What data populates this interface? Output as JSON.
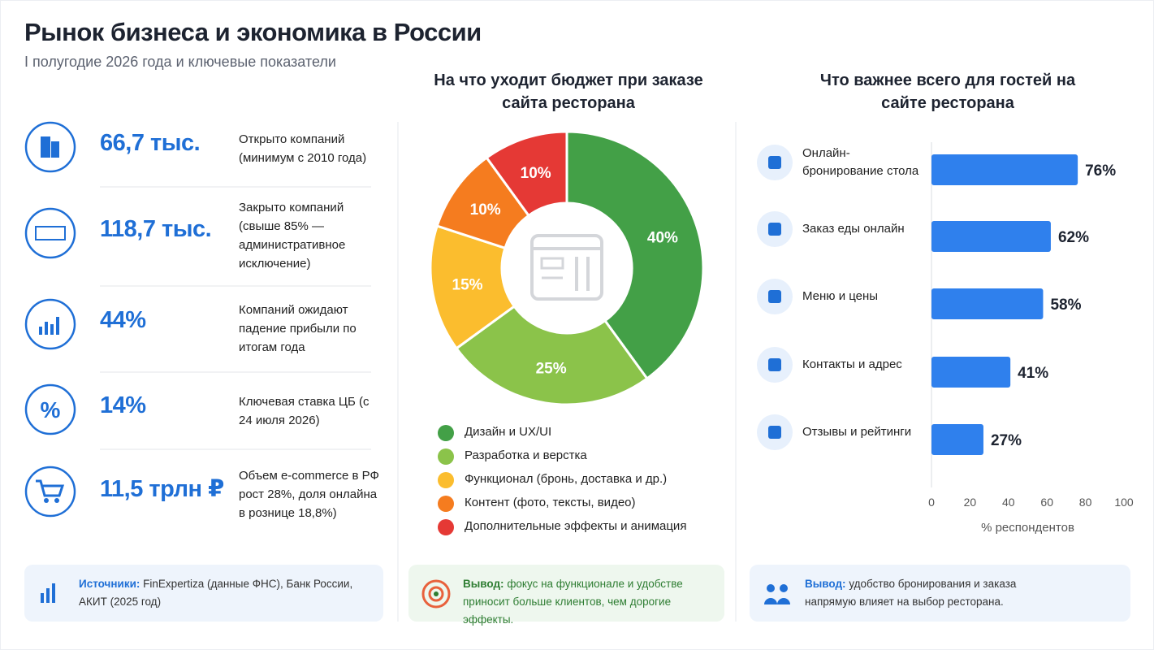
{
  "header": {
    "title": "Рынок бизнеса и экономика в России",
    "subtitle": "I полугодие 2026 года и ключевые показатели"
  },
  "kpis": [
    {
      "value": "66,7 тыс.",
      "text": "Открыто компаний (минимум с 2010 года)"
    },
    {
      "value": "118,7 тыс.",
      "text": "Закрыто компаний (свыше 85% — административное исключение)"
    },
    {
      "value": "44%",
      "text": "Компаний ожидают падение прибыли по итогам года"
    },
    {
      "value": "14%",
      "text": "Ключевая ставка ЦБ (с 24 июля 2026)"
    },
    {
      "value": "11,5 трлн ₽",
      "text": "Объем e-commerce в РФ рост 28%, доля онлайна в рознице 18,8%)"
    }
  ],
  "chart_data": [
    {
      "type": "donut",
      "title": "На что уходит бюджет при заказе сайта ресторана",
      "categories": [
        "Дизайн и UX/UI",
        "Разработка и верстка",
        "Функционал (бронь, доставка и др.)",
        "Контент (фото, тексты, видео)",
        "Дополнительные эффекты и анимация"
      ],
      "values": [
        40,
        25,
        15,
        10,
        10
      ],
      "value_labels": [
        "40%",
        "25%",
        "15%",
        "10%",
        "10%"
      ],
      "colors": [
        "#43a047",
        "#8bc34a",
        "#fbbd2e",
        "#f57c1f",
        "#e53935"
      ]
    },
    {
      "type": "bar",
      "orientation": "horizontal",
      "title": "Что важнее всего для гостей на сайте ресторана",
      "categories": [
        "Онлайн-бронирование стола",
        "Заказ еды онлайн",
        "Меню и цены",
        "Контакты и адрес",
        "Отзывы и рейтинги"
      ],
      "values": [
        76,
        62,
        58,
        41,
        27
      ],
      "value_labels": [
        "76%",
        "62%",
        "58%",
        "41%",
        "27%"
      ],
      "color": "#2f80ed",
      "xlim": [
        0,
        100
      ],
      "xticks": [
        0,
        20,
        40,
        60,
        80,
        100
      ],
      "xlabel": "% респондентов"
    }
  ],
  "notes": [
    {
      "label": "Источники:",
      "text": "FinExpertiza (данные ФНС), Банк России, АКИТ (2025 год)"
    },
    {
      "label": "Вывод:",
      "text": "фокус на функционале и удобстве приносит больше клиентов, чем дорогие эффекты."
    },
    {
      "label": "Вывод:",
      "text": "удобство бронирования и заказа напрямую влияет на выбор ресторана."
    }
  ]
}
